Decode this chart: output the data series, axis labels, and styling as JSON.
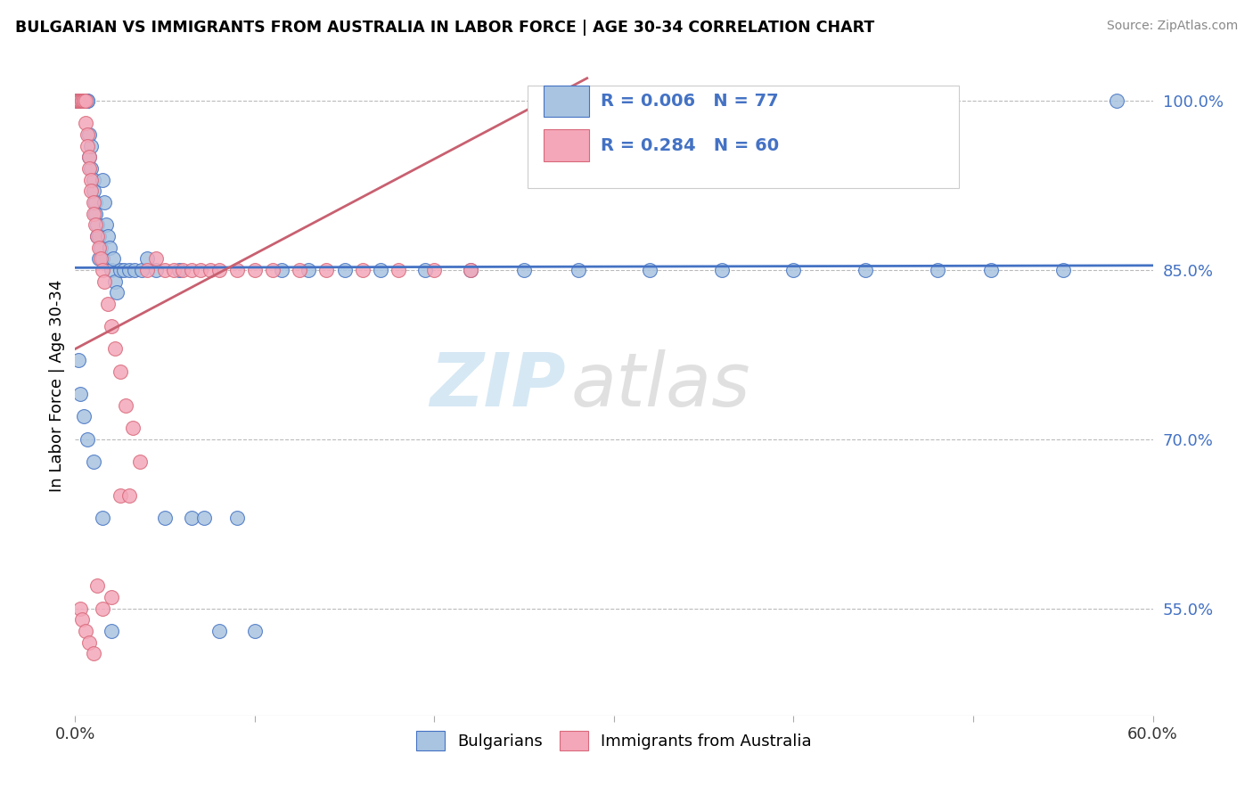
{
  "title": "BULGARIAN VS IMMIGRANTS FROM AUSTRALIA IN LABOR FORCE | AGE 30-34 CORRELATION CHART",
  "source": "Source: ZipAtlas.com",
  "ylabel": "In Labor Force | Age 30-34",
  "xmin": 0.0,
  "xmax": 0.6,
  "ymin": 0.455,
  "ymax": 1.04,
  "yticks": [
    0.55,
    0.7,
    0.85,
    1.0
  ],
  "ytick_labels": [
    "55.0%",
    "70.0%",
    "85.0%",
    "100.0%"
  ],
  "blue_color": "#a8c4e0",
  "pink_color": "#f4a7b9",
  "blue_edge_color": "#4472c4",
  "pink_edge_color": "#d9687a",
  "blue_trend_color": "#4472c4",
  "pink_trend_color": "#c86070",
  "legend_blue_label": "R = 0.006   N = 77",
  "legend_pink_label": "R = 0.284   N = 60",
  "legend_label_bulgarians": "Bulgarians",
  "legend_label_immigrants": "Immigrants from Australia",
  "watermark_zip": "ZIP",
  "watermark_atlas": "atlas",
  "blue_x": [
    0.001,
    0.002,
    0.002,
    0.003,
    0.003,
    0.003,
    0.004,
    0.004,
    0.004,
    0.005,
    0.005,
    0.005,
    0.006,
    0.006,
    0.006,
    0.007,
    0.007,
    0.008,
    0.008,
    0.009,
    0.009,
    0.01,
    0.01,
    0.011,
    0.011,
    0.012,
    0.012,
    0.013,
    0.013,
    0.014,
    0.015,
    0.015,
    0.016,
    0.017,
    0.018,
    0.019,
    0.02,
    0.021,
    0.022,
    0.023,
    0.025,
    0.027,
    0.03,
    0.033,
    0.037,
    0.04,
    0.045,
    0.05,
    0.058,
    0.065,
    0.072,
    0.08,
    0.09,
    0.1,
    0.115,
    0.13,
    0.15,
    0.17,
    0.195,
    0.22,
    0.25,
    0.28,
    0.32,
    0.36,
    0.4,
    0.44,
    0.48,
    0.51,
    0.55,
    0.58,
    0.002,
    0.003,
    0.005,
    0.007,
    0.01,
    0.015,
    0.02
  ],
  "blue_y": [
    1.0,
    1.0,
    1.0,
    1.0,
    1.0,
    1.0,
    1.0,
    1.0,
    1.0,
    1.0,
    1.0,
    1.0,
    1.0,
    1.0,
    1.0,
    1.0,
    1.0,
    0.97,
    0.95,
    0.96,
    0.94,
    0.93,
    0.92,
    0.91,
    0.9,
    0.89,
    0.88,
    0.88,
    0.86,
    0.87,
    0.86,
    0.93,
    0.91,
    0.89,
    0.88,
    0.87,
    0.85,
    0.86,
    0.84,
    0.83,
    0.85,
    0.85,
    0.85,
    0.85,
    0.85,
    0.86,
    0.85,
    0.63,
    0.85,
    0.63,
    0.63,
    0.53,
    0.63,
    0.53,
    0.85,
    0.85,
    0.85,
    0.85,
    0.85,
    0.85,
    0.85,
    0.85,
    0.85,
    0.85,
    0.85,
    0.85,
    0.85,
    0.85,
    0.85,
    1.0,
    0.77,
    0.74,
    0.72,
    0.7,
    0.68,
    0.63,
    0.53
  ],
  "pink_x": [
    0.001,
    0.002,
    0.002,
    0.003,
    0.003,
    0.004,
    0.004,
    0.005,
    0.005,
    0.006,
    0.006,
    0.007,
    0.007,
    0.008,
    0.008,
    0.009,
    0.009,
    0.01,
    0.01,
    0.011,
    0.012,
    0.013,
    0.014,
    0.015,
    0.016,
    0.018,
    0.02,
    0.022,
    0.025,
    0.028,
    0.032,
    0.036,
    0.04,
    0.045,
    0.05,
    0.055,
    0.06,
    0.065,
    0.07,
    0.075,
    0.08,
    0.09,
    0.1,
    0.11,
    0.125,
    0.14,
    0.16,
    0.18,
    0.2,
    0.22,
    0.003,
    0.004,
    0.006,
    0.008,
    0.01,
    0.012,
    0.015,
    0.02,
    0.025,
    0.03
  ],
  "pink_y": [
    1.0,
    1.0,
    1.0,
    1.0,
    1.0,
    1.0,
    1.0,
    1.0,
    1.0,
    1.0,
    0.98,
    0.97,
    0.96,
    0.95,
    0.94,
    0.93,
    0.92,
    0.91,
    0.9,
    0.89,
    0.88,
    0.87,
    0.86,
    0.85,
    0.84,
    0.82,
    0.8,
    0.78,
    0.76,
    0.73,
    0.71,
    0.68,
    0.85,
    0.86,
    0.85,
    0.85,
    0.85,
    0.85,
    0.85,
    0.85,
    0.85,
    0.85,
    0.85,
    0.85,
    0.85,
    0.85,
    0.85,
    0.85,
    0.85,
    0.85,
    0.55,
    0.54,
    0.53,
    0.52,
    0.51,
    0.57,
    0.55,
    0.56,
    0.65,
    0.65
  ],
  "blue_trend_x": [
    0.0,
    0.6
  ],
  "blue_trend_y": [
    0.852,
    0.854
  ],
  "pink_trend_x": [
    0.0,
    0.285
  ],
  "pink_trend_y": [
    0.78,
    1.02
  ]
}
